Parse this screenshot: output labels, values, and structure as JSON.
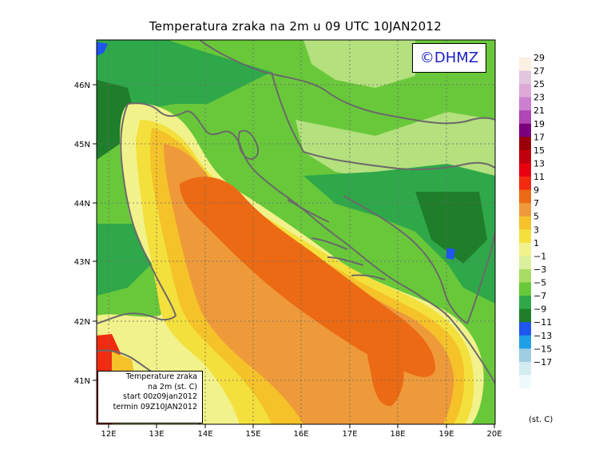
{
  "title": "Temperatura zraka na 2m u 09 UTC 10JAN2012",
  "logo": "©DHMZ",
  "info_box": {
    "line1": "Temperature zraka",
    "line2": "na 2m (st. C)",
    "line3": "start 00z09jan2012",
    "line4": "termin 09Z10JAN2012"
  },
  "colors": {
    "sea_orange": "#ec6a14",
    "sea_light_orange": "#ee9a3a",
    "land_green": "#68c83a",
    "forest_green": "#2fa84a",
    "lowland_lightgreen": "#b4e07e",
    "coastline": "#6a6a6a"
  },
  "chart_data": {
    "type": "heatmap",
    "title": "Temperatura zraka na 2m u 09 UTC 10JAN2012",
    "xlabel": "",
    "ylabel": "",
    "x_ticks": [
      "12E",
      "13E",
      "14E",
      "15E",
      "16E",
      "17E",
      "18E",
      "19E",
      "20E"
    ],
    "y_ticks": [
      "41N",
      "42N",
      "43N",
      "44N",
      "45N",
      "46N"
    ],
    "lon_range": [
      11.75,
      20
    ],
    "lat_range": [
      40.25,
      46.75
    ],
    "grid": true,
    "legend_position": "right",
    "colorbar_labels": [
      "29",
      "27",
      "25",
      "23",
      "21",
      "19",
      "17",
      "15",
      "13",
      "11",
      "9",
      "7",
      "5",
      "3",
      "1",
      "−1",
      "−3",
      "−5",
      "−7",
      "−9",
      "−11",
      "−13",
      "−15",
      "−17"
    ],
    "colorbar_unit": "(st. C)",
    "colorbar_colors": [
      "#fbefe2",
      "#e2c6dd",
      "#ddaad8",
      "#cc7fcf",
      "#b045b4",
      "#7a007c",
      "#9a0008",
      "#c0000c",
      "#e8000e",
      "#f22b10",
      "#ec6a14",
      "#ee9a3a",
      "#f5c22a",
      "#f4e03c",
      "#f2f28c",
      "#dcef9c",
      "#a8dc64",
      "#68c83a",
      "#2fa84a",
      "#1f7e2a",
      "#2055ee",
      "#1e9fe6",
      "#9fcde2",
      "#d3ecf2",
      "#eefafc"
    ]
  }
}
